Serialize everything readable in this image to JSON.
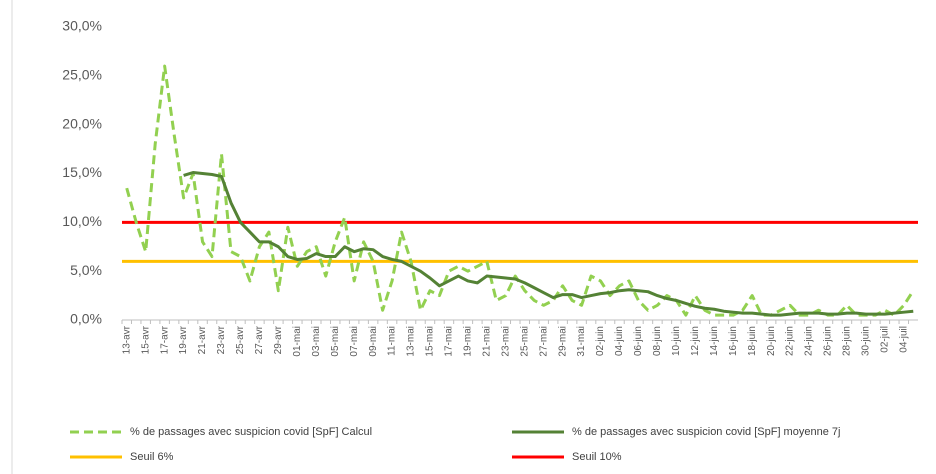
{
  "chart_data": {
    "type": "line",
    "categories": [
      "13-avr",
      null,
      "15-avr",
      null,
      "17-avr",
      null,
      "19-avr",
      null,
      "21-avr",
      null,
      "23-avr",
      null,
      "25-avr",
      null,
      "27-avr",
      null,
      "29-avr",
      null,
      "01-mai",
      null,
      "03-mai",
      null,
      "05-mai",
      null,
      "07-mai",
      null,
      "09-mai",
      null,
      "11-mai",
      null,
      "13-mai",
      null,
      "15-mai",
      null,
      "17-mai",
      null,
      "19-mai",
      null,
      "21-mai",
      null,
      "23-mai",
      null,
      "25-mai",
      null,
      "27-mai",
      null,
      "29-mai",
      null,
      "31-mai",
      null,
      "02-juin",
      null,
      "04-juin",
      null,
      "06-juin",
      null,
      "08-juin",
      null,
      "10-juin",
      null,
      "12-juin",
      null,
      "14-juin",
      null,
      "16-juin",
      null,
      "18-juin",
      null,
      "20-juin",
      null,
      "22-juin",
      null,
      "24-juin",
      null,
      "26-juin",
      null,
      "28-juin",
      null,
      "30-juin",
      null,
      "02-juil",
      null,
      "04-juil",
      null
    ],
    "series": [
      {
        "name": "% de passages avec suspicion covid [SpF] Calcul",
        "color": "#92d050",
        "line_style": "dashed",
        "values": [
          13.5,
          10,
          7,
          18,
          26,
          19,
          12.5,
          15,
          8,
          6.5,
          17,
          7,
          6.5,
          4,
          7.5,
          9,
          3,
          9.5,
          5.5,
          7,
          7.5,
          4.5,
          8,
          10.5,
          4,
          8,
          6,
          1,
          4,
          9,
          6,
          1,
          3,
          2.5,
          5,
          5.5,
          5,
          5.5,
          6,
          2,
          2.5,
          4.5,
          3,
          2,
          1.5,
          2,
          3.5,
          2,
          1.5,
          4.5,
          4,
          2.5,
          3.5,
          4,
          2,
          1,
          1.5,
          2.5,
          2,
          0.5,
          2.5,
          1,
          0.5,
          0.5,
          0.5,
          1,
          2.5,
          0.5,
          0.5,
          1,
          1.5,
          0.5,
          0.5,
          1,
          0.5,
          0.5,
          1.5,
          0.5,
          0.5,
          0.5,
          1,
          0.5,
          1.5,
          3
        ]
      },
      {
        "name": "% de passages avec suspicion covid [SpF] moyenne 7j",
        "color": "#548235",
        "line_style": "solid",
        "values": [
          null,
          null,
          null,
          null,
          null,
          null,
          14.8,
          15.1,
          15,
          14.9,
          14.7,
          12,
          10,
          9,
          8,
          8,
          7.5,
          6.5,
          6.2,
          6.3,
          6.8,
          6.5,
          6.5,
          7.5,
          7,
          7.3,
          7.2,
          6.5,
          6.2,
          6,
          5.5,
          5,
          4.3,
          3.5,
          4,
          4.5,
          4,
          3.8,
          4.5,
          4.4,
          4.3,
          4.2,
          3.8,
          3.3,
          2.8,
          2.3,
          2.6,
          2.6,
          2.3,
          2.5,
          2.7,
          2.8,
          3,
          3.1,
          3,
          2.9,
          2.5,
          2.2,
          2,
          1.7,
          1.4,
          1.2,
          1.1,
          0.9,
          0.8,
          0.7,
          0.7,
          0.6,
          0.5,
          0.5,
          0.6,
          0.7,
          0.7,
          0.7,
          0.6,
          0.6,
          0.7,
          0.7,
          0.6,
          0.6,
          0.6,
          0.7,
          0.8,
          0.9
        ]
      }
    ],
    "reference_lines": [
      {
        "name": "Seuil 6%",
        "value": 6,
        "color": "#ffc000"
      },
      {
        "name": "Seuil 10%",
        "value": 10,
        "color": "#ff0000"
      }
    ],
    "ylim": [
      0,
      30
    ],
    "yticks": [
      {
        "value": 0,
        "label": "0,0%"
      },
      {
        "value": 5,
        "label": "5,0%"
      },
      {
        "value": 10,
        "label": "10,0%"
      },
      {
        "value": 15,
        "label": "15,0%"
      },
      {
        "value": 20,
        "label": "20,0%"
      },
      {
        "value": 25,
        "label": "25,0%"
      },
      {
        "value": 30,
        "label": "30,0%"
      }
    ]
  }
}
